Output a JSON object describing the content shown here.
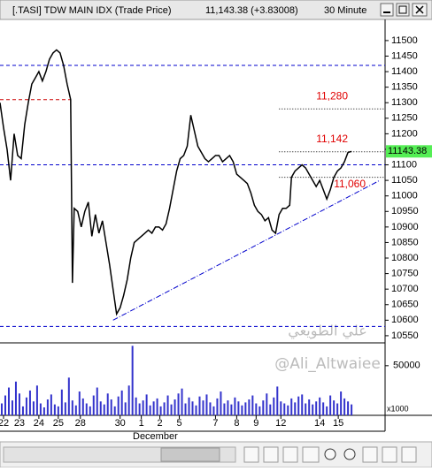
{
  "chart_data": {
    "type": "line",
    "title": "[.TASI] TDW MAIN IDX (Trade Price)",
    "last_quote": "11,143.38 (+3.83008)",
    "interval": "30 Minute",
    "last_price": {
      "value": 11143.38,
      "label": "11143.38"
    },
    "x_axis_month": "December",
    "volume_unit": "x1000",
    "watermark": [
      "علي الطويعي",
      "@Ali_Altwaiee"
    ],
    "xlim": [
      0,
      109
    ],
    "xticks": [
      {
        "value": 1,
        "label": "22"
      },
      {
        "value": 5.5,
        "label": "23"
      },
      {
        "value": 11,
        "label": "24"
      },
      {
        "value": 16.5,
        "label": "25"
      },
      {
        "value": 22.75,
        "label": "28"
      },
      {
        "value": 34,
        "label": "30"
      },
      {
        "value": 40,
        "label": "1"
      },
      {
        "value": 45.25,
        "label": "2"
      },
      {
        "value": 50.75,
        "label": "5"
      },
      {
        "value": 61,
        "label": "7"
      },
      {
        "value": 67,
        "label": "8"
      },
      {
        "value": 72.5,
        "label": "9"
      },
      {
        "value": 79.5,
        "label": "12"
      },
      {
        "value": 90.5,
        "label": "14"
      },
      {
        "value": 95.75,
        "label": "15"
      }
    ],
    "ylim": [
      10527,
      11568
    ],
    "yticks": [
      11500,
      11450,
      11400,
      11350,
      11300,
      11250,
      11200,
      11150,
      11100,
      11050,
      11000,
      10950,
      10900,
      10850,
      10800,
      10750,
      10700,
      10650,
      10600,
      10550
    ],
    "x": [
      0,
      1,
      2,
      3,
      4,
      5,
      6,
      7,
      8,
      9,
      10,
      11,
      12,
      13,
      14,
      15,
      16,
      17,
      18,
      19,
      20,
      20.5,
      21,
      22,
      23,
      24,
      25,
      26,
      27,
      28,
      29,
      30,
      31,
      32,
      33,
      34,
      35,
      36,
      37,
      38,
      39,
      40,
      41,
      42,
      43,
      44,
      45,
      46,
      47,
      48,
      49,
      50,
      51,
      52,
      53,
      54,
      55,
      56,
      57,
      58,
      59,
      60,
      61,
      62,
      63,
      64,
      65,
      66,
      67,
      68,
      69,
      70,
      71,
      72,
      73,
      74,
      75,
      76,
      77,
      78,
      79,
      80,
      81,
      82,
      82.5,
      83.5,
      84.5,
      85.5,
      86.5,
      87.5,
      88.5,
      89.5,
      90.5,
      91.5,
      92.5,
      93.5,
      94.5,
      95.5,
      96.5,
      97.5,
      98.5,
      99.5
    ],
    "series": [
      {
        "name": "Trade Price",
        "color": "#000000",
        "values": [
          11300,
          11220,
          11150,
          11050,
          11200,
          11130,
          11120,
          11230,
          11300,
          11360,
          11380,
          11400,
          11370,
          11400,
          11440,
          11460,
          11470,
          11460,
          11420,
          11360,
          11310,
          10720,
          10960,
          10950,
          10900,
          10950,
          10980,
          10870,
          10940,
          10880,
          10920,
          10850,
          10780,
          10700,
          10620,
          10640,
          10680,
          10730,
          10800,
          10850,
          10860,
          10870,
          10880,
          10890,
          10880,
          10900,
          10900,
          10890,
          10910,
          10960,
          11020,
          11080,
          11120,
          11130,
          11160,
          11260,
          11210,
          11160,
          11140,
          11120,
          11110,
          11120,
          11130,
          11130,
          11110,
          11120,
          11130,
          11110,
          11070,
          11060,
          11050,
          11040,
          11010,
          10970,
          10950,
          10940,
          10920,
          10930,
          10890,
          10880,
          10940,
          10960,
          10960,
          10970,
          11060,
          11080,
          11090,
          11100,
          11090,
          11070,
          11050,
          11030,
          11050,
          11020,
          10990,
          11020,
          11060,
          11080,
          11090,
          11110,
          11140,
          11143.38
        ]
      }
    ],
    "levels": [
      {
        "value": 11420,
        "color": "#0000cc",
        "style": "dashed"
      },
      {
        "value": 11100,
        "color": "#0000cc",
        "style": "dashed"
      },
      {
        "value": 10580,
        "color": "#0000cc",
        "style": "dashed"
      },
      {
        "value": 11310,
        "color": "#cc0000",
        "style": "dashed",
        "x": [
          0,
          20
        ]
      },
      {
        "value": 11280,
        "label": "11,280",
        "color": "#000000",
        "style": "dotted",
        "x": [
          79,
          109
        ]
      },
      {
        "value": 11142,
        "label": "11,142",
        "color": "#000000",
        "style": "dotted",
        "x": [
          79,
          109
        ]
      },
      {
        "value": 11060,
        "label": "11,060",
        "color": "#000000",
        "style": "dotted",
        "x": [
          79,
          109
        ]
      }
    ],
    "trendline": {
      "x": [
        32,
        107.5
      ],
      "y": [
        10600,
        11050
      ],
      "color": "#0000cc"
    },
    "volume": {
      "color": "#3333cc",
      "ylim": [
        0,
        73000
      ],
      "yticks": [
        50000
      ],
      "x": [
        0,
        1,
        2,
        3,
        4,
        5,
        6,
        7,
        8,
        9,
        10,
        11,
        12,
        13,
        14,
        15,
        16,
        17,
        18,
        19,
        20,
        21,
        22,
        23,
        24,
        25,
        26,
        27,
        28,
        29,
        30,
        31,
        32,
        33,
        34,
        35,
        36,
        37,
        38,
        39,
        40,
        41,
        42,
        43,
        44,
        45,
        46,
        47,
        48,
        49,
        50,
        51,
        52,
        53,
        54,
        55,
        56,
        57,
        58,
        59,
        60,
        61,
        62,
        63,
        64,
        65,
        66,
        67,
        68,
        69,
        70,
        71,
        72,
        73,
        74,
        75,
        76,
        77,
        78,
        79,
        80,
        81,
        82,
        83,
        84,
        85,
        86,
        87,
        88,
        89,
        90,
        91,
        92,
        93,
        94,
        95,
        96,
        97,
        98,
        99
      ],
      "values": [
        12000,
        20000,
        28000,
        15000,
        34000,
        22000,
        9000,
        18000,
        25000,
        14000,
        30000,
        12000,
        8000,
        16000,
        21000,
        11000,
        9000,
        26000,
        13000,
        38000,
        15000,
        10000,
        24000,
        17000,
        12000,
        9000,
        20000,
        28000,
        14000,
        11000,
        22000,
        16000,
        9000,
        19000,
        25000,
        13000,
        30000,
        70000,
        18000,
        12000,
        15000,
        21000,
        10000,
        14000,
        17000,
        9000,
        13000,
        20000,
        11000,
        16000,
        22000,
        27000,
        12000,
        18000,
        14000,
        10000,
        19000,
        15000,
        21000,
        13000,
        9000,
        17000,
        24000,
        12000,
        15000,
        11000,
        18000,
        14000,
        10000,
        13000,
        16000,
        20000,
        12000,
        9000,
        15000,
        22000,
        11000,
        18000,
        29000,
        14000,
        12000,
        10000,
        17000,
        13000,
        19000,
        21000,
        12000,
        16000,
        11000,
        14000,
        18000,
        13000,
        9000,
        20000,
        15000,
        12000,
        24000,
        17000,
        14000,
        11000
      ]
    }
  }
}
